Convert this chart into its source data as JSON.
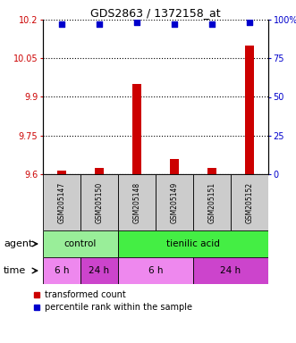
{
  "title": "GDS2863 / 1372158_at",
  "samples": [
    "GSM205147",
    "GSM205150",
    "GSM205148",
    "GSM205149",
    "GSM205151",
    "GSM205152"
  ],
  "bar_values": [
    9.615,
    9.625,
    9.95,
    9.66,
    9.625,
    10.1
  ],
  "percentile_values": [
    97,
    97,
    98,
    97,
    97,
    98
  ],
  "ylim_left": [
    9.6,
    10.2
  ],
  "ylim_right": [
    0,
    100
  ],
  "yticks_left": [
    9.6,
    9.75,
    9.9,
    10.05,
    10.2
  ],
  "ytick_labels_left": [
    "9.6",
    "9.75",
    "9.9",
    "10.05",
    "10.2"
  ],
  "yticks_right": [
    0,
    25,
    50,
    75,
    100
  ],
  "ytick_labels_right": [
    "0",
    "25",
    "50",
    "75",
    "100%"
  ],
  "bar_color": "#cc0000",
  "dot_color": "#0000cc",
  "agent_groups": [
    {
      "label": "control",
      "start": 0,
      "end": 2,
      "color": "#99ee99"
    },
    {
      "label": "tienilic acid",
      "start": 2,
      "end": 6,
      "color": "#44ee44"
    }
  ],
  "time_groups": [
    {
      "label": "6 h",
      "start": 0,
      "end": 1,
      "color": "#ee88ee"
    },
    {
      "label": "24 h",
      "start": 1,
      "end": 2,
      "color": "#cc44cc"
    },
    {
      "label": "6 h",
      "start": 2,
      "end": 4,
      "color": "#ee88ee"
    },
    {
      "label": "24 h",
      "start": 4,
      "end": 6,
      "color": "#cc44cc"
    }
  ],
  "legend_bar_color": "#cc0000",
  "legend_dot_color": "#0000cc",
  "legend_label_bar": "transformed count",
  "legend_label_dot": "percentile rank within the sample",
  "agent_label": "agent",
  "time_label": "time",
  "background_color": "#ffffff",
  "sample_box_color": "#cccccc"
}
